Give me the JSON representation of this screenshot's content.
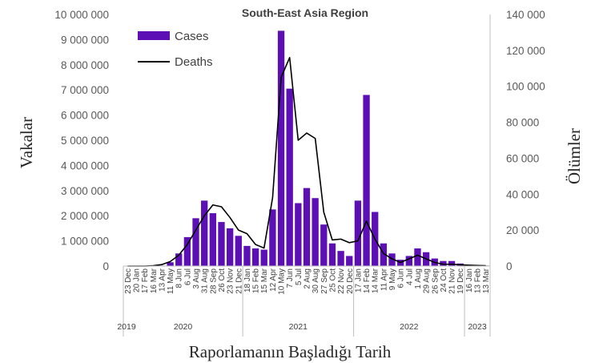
{
  "chart_data": {
    "type": "bar",
    "title": "South-East Asia Region",
    "xlabel": "Raporlamanın Başladığı Tarih",
    "ylabel": "Vakalar",
    "ylabel_right": "Ölümler",
    "ylim": [
      0,
      10000000
    ],
    "ylim_right": [
      0,
      140000
    ],
    "yticks": [
      "0",
      "1 000 000",
      "2 000 000",
      "3 000 000",
      "4 000 000",
      "5 000 000",
      "6 000 000",
      "7 000 000",
      "8 000 000",
      "9 000 000",
      "10 000 000"
    ],
    "yticks_right": [
      "0",
      "20 000",
      "40 000",
      "60 000",
      "80 000",
      "100 000",
      "120 000",
      "140 000"
    ],
    "grid": false,
    "legend_position": "top-left",
    "colors": {
      "cases": "#5b0fb5",
      "deaths": "#000000"
    },
    "x_tick_labels": [
      "23 Dec",
      "20 Jan",
      "17 Feb",
      "16 Mar",
      "13 Apr",
      "11 May",
      "8 Jun",
      "6 Jul",
      "3 Aug",
      "31 Aug",
      "28 Sep",
      "26 Oct",
      "23 Nov",
      "21 Dec",
      "18 Jan",
      "15 Feb",
      "15 Mar",
      "12 Apr",
      "10 May",
      "7 Jun",
      "5 Jul",
      "2 Aug",
      "30 Aug",
      "27 Sep",
      "25 Oct",
      "22 Nov",
      "20 Dec",
      "17 Jan",
      "14 Feb",
      "14 Mar",
      "11 Apr",
      "9 May",
      "6 Jun",
      "4 Jul",
      "1 Aug",
      "29 Aug",
      "26 Sep",
      "24 Oct",
      "21 Nov",
      "19 Dec",
      "16 Jan",
      "13 Feb",
      "13 Mar"
    ],
    "years": [
      "2019",
      "2020",
      "2021",
      "2022",
      "2023"
    ],
    "series": [
      {
        "name": "Cases",
        "type": "bar",
        "values": [
          0,
          0,
          0,
          0,
          20000,
          150000,
          500000,
          1150000,
          1900000,
          2600000,
          2100000,
          1750000,
          1500000,
          1200000,
          800000,
          700000,
          650000,
          2250000,
          9350000,
          7050000,
          2500000,
          3100000,
          2700000,
          1650000,
          900000,
          600000,
          400000,
          2600000,
          6800000,
          2150000,
          900000,
          500000,
          250000,
          400000,
          700000,
          550000,
          300000,
          200000,
          200000,
          100000,
          50000,
          30000,
          20000
        ]
      },
      {
        "name": "Deaths",
        "type": "line",
        "values": [
          0,
          0,
          0,
          200,
          800,
          2500,
          6000,
          12000,
          20000,
          28000,
          34000,
          33000,
          27000,
          20000,
          18000,
          12000,
          10000,
          38000,
          105000,
          116000,
          70000,
          74000,
          71000,
          30000,
          14500,
          15000,
          13000,
          14000,
          25000,
          15000,
          7000,
          4000,
          2000,
          4000,
          6000,
          4000,
          2000,
          1000,
          1000,
          700,
          500,
          300,
          200
        ]
      }
    ]
  }
}
